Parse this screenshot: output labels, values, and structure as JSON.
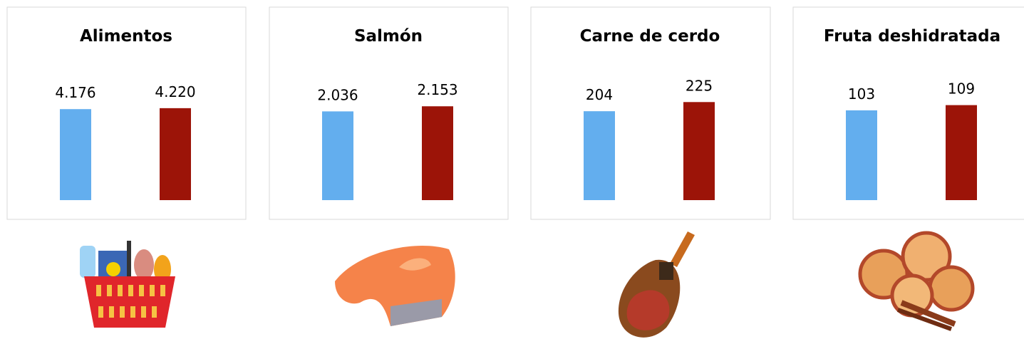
{
  "chart_data": [
    {
      "type": "bar",
      "title": "Alimentos",
      "values": [
        4176,
        4220
      ],
      "value_labels": [
        "4.176",
        "4.220"
      ],
      "colors": [
        "#63aeee",
        "#9c1408"
      ],
      "ylim": [
        0,
        5000
      ]
    },
    {
      "type": "bar",
      "title": "Salmón",
      "values": [
        2036,
        2153
      ],
      "value_labels": [
        "2.036",
        "2.153"
      ],
      "colors": [
        "#63aeee",
        "#9c1408"
      ],
      "ylim": [
        0,
        2500
      ]
    },
    {
      "type": "bar",
      "title": "Carne de cerdo",
      "values": [
        204,
        225
      ],
      "colors": [
        "#63aeee",
        "#9c1408"
      ],
      "ylim": [
        0,
        250
      ]
    },
    {
      "type": "bar",
      "title": "Fruta deshidratada",
      "values": [
        103,
        109
      ],
      "colors": [
        "#63aeee",
        "#9c1408"
      ],
      "ylim": [
        0,
        125
      ]
    }
  ]
}
